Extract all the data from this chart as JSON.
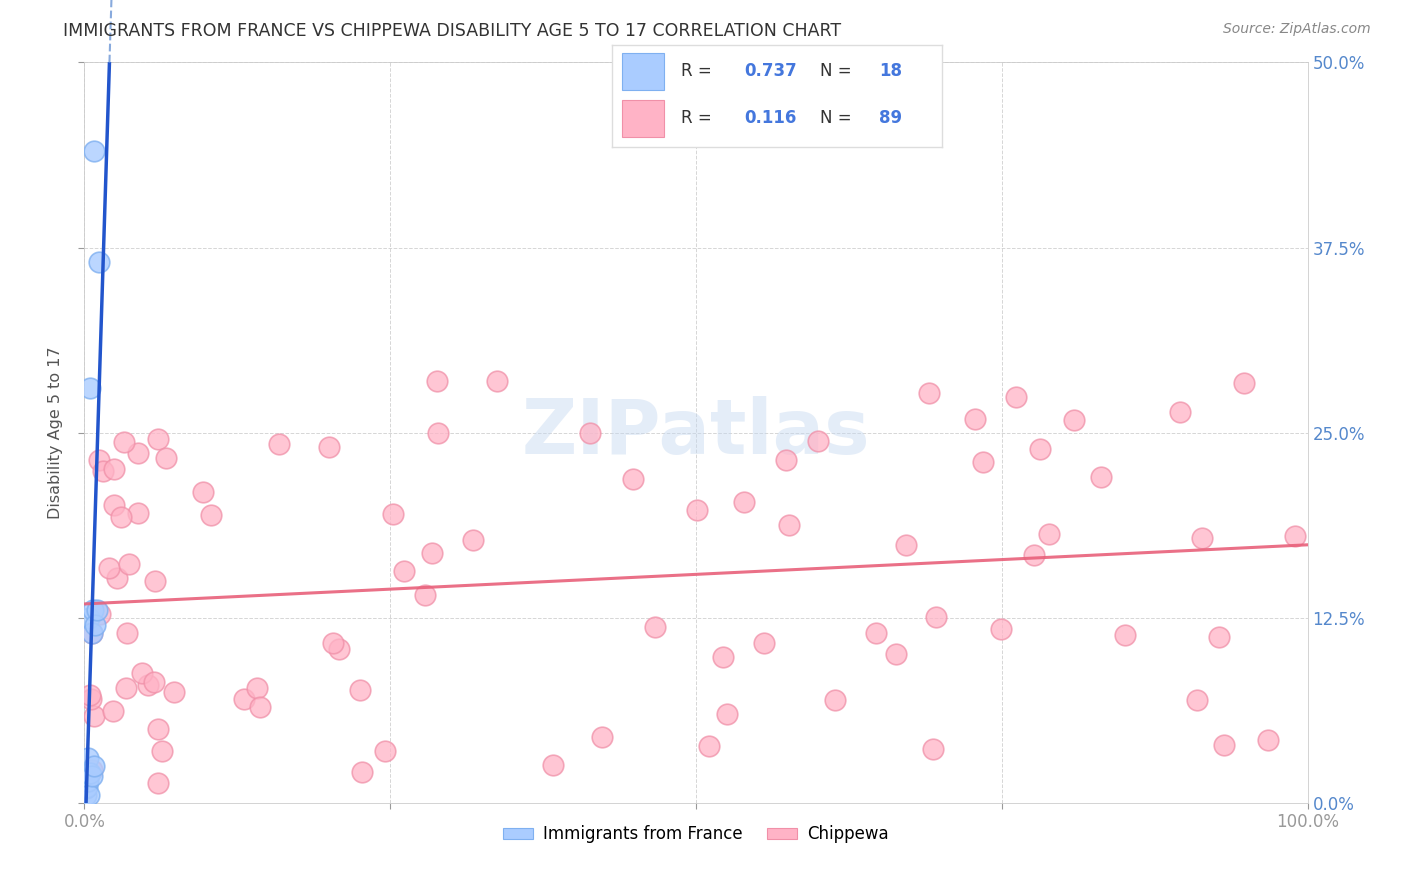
{
  "title": "IMMIGRANTS FROM FRANCE VS CHIPPEWA DISABILITY AGE 5 TO 17 CORRELATION CHART",
  "source": "Source: ZipAtlas.com",
  "ylabel": "Disability Age 5 to 17",
  "xlim": [
    0,
    1.0
  ],
  "ylim": [
    0,
    0.5
  ],
  "france_color": "#aaccff",
  "france_edge_color": "#7fb0f0",
  "chippewa_color": "#ffb3c6",
  "chippewa_edge_color": "#f090a8",
  "france_R": 0.737,
  "france_N": 18,
  "chippewa_R": 0.116,
  "chippewa_N": 89,
  "legend_label1": "Immigrants from France",
  "legend_label2": "Chippewa",
  "watermark": "ZIPatlas",
  "france_line_color": "#2255cc",
  "france_dash_color": "#88aadd",
  "chippewa_line_color": "#e8607a",
  "right_tick_color": "#5588cc",
  "title_color": "#333333",
  "source_color": "#888888"
}
